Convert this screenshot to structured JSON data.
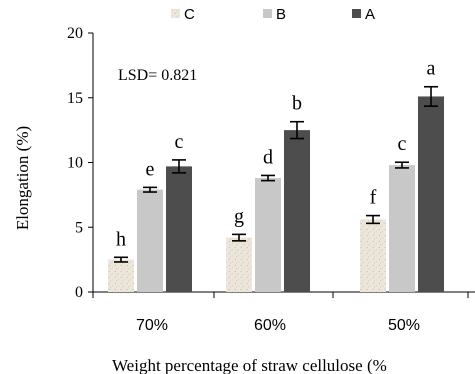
{
  "chart_data": {
    "type": "bar",
    "categories": [
      "70%",
      "60%",
      "50%"
    ],
    "series": [
      {
        "name": "C",
        "color": "#ece6db",
        "pattern": "speckled",
        "values": [
          2.5,
          4.2,
          5.6
        ],
        "errors": [
          0.18,
          0.25,
          0.3
        ],
        "letters": [
          "h",
          "g",
          "f"
        ]
      },
      {
        "name": "B",
        "color": "#c8c8c8",
        "pattern": "solid",
        "values": [
          7.9,
          8.8,
          9.8
        ],
        "errors": [
          0.18,
          0.2,
          0.22
        ],
        "letters": [
          "e",
          "d",
          "c"
        ]
      },
      {
        "name": "A",
        "color": "#4d4d4d",
        "pattern": "solid",
        "values": [
          9.7,
          12.5,
          15.1
        ],
        "errors": [
          0.5,
          0.65,
          0.75
        ],
        "letters": [
          "c",
          "b",
          "a"
        ]
      }
    ],
    "ylim": [
      0,
      20
    ],
    "yticks": [
      0,
      5,
      10,
      15,
      20
    ],
    "ylabel": "Elongation (%)",
    "xlabel": "Weight percentage of straw cellulose (%",
    "annotation": "LSD= 0.821",
    "legend_position": "top",
    "grid": false
  }
}
